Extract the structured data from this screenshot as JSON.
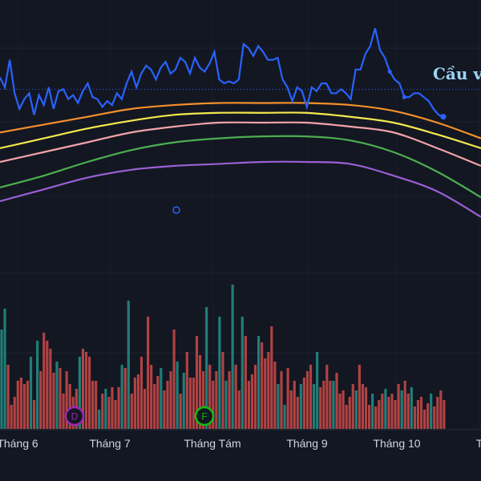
{
  "chart_data": {
    "type": "line",
    "overlay_label": "Cầu v",
    "x_ticks": [
      "Tháng 6",
      "Tháng 7",
      "Tháng Tám",
      "Tháng 9",
      "Tháng 10",
      "T"
    ],
    "price_range": [
      0,
      100
    ],
    "volume_range": [
      0,
      100
    ],
    "price_series": {
      "color": "#2962ff",
      "values": [
        83,
        78,
        92,
        75,
        67,
        72,
        75,
        64,
        74,
        69,
        78,
        67,
        76,
        77,
        72,
        74,
        70,
        76,
        80,
        73,
        72,
        68,
        71,
        69,
        75,
        72,
        80,
        86,
        78,
        85,
        89,
        87,
        82,
        88,
        91,
        85,
        87,
        93,
        91,
        85,
        93,
        88,
        86,
        90,
        96,
        82,
        80,
        81,
        80,
        82,
        100,
        98,
        94,
        99,
        96,
        92,
        92,
        93,
        82,
        78,
        71,
        78,
        76,
        68,
        78,
        76,
        80,
        80,
        75,
        75,
        77,
        75,
        72,
        87,
        87,
        95,
        99,
        108,
        97,
        93,
        86,
        82,
        80,
        73,
        73,
        75,
        75,
        73,
        71,
        67,
        64,
        63
      ]
    },
    "moving_averages": [
      {
        "color": "#f5902a",
        "values": [
          55,
          59,
          63,
          67,
          69,
          70,
          70,
          70,
          69,
          66,
          60,
          52
        ]
      },
      {
        "color": "#f5e94f",
        "values": [
          47,
          52,
          57,
          61,
          64,
          65,
          65,
          65,
          63,
          60,
          54,
          47
        ]
      },
      {
        "color": "#f4a2a9",
        "values": [
          40,
          45,
          50,
          55,
          58,
          60,
          60,
          60,
          58,
          55,
          47,
          38
        ]
      },
      {
        "color": "#4caf50",
        "values": [
          27,
          33,
          40,
          46,
          50,
          52,
          53,
          53,
          51,
          45,
          35,
          22
        ]
      },
      {
        "color": "#9c5fd5",
        "values": [
          20,
          26,
          32,
          36,
          38,
          39,
          40,
          40,
          39,
          33,
          25,
          12
        ]
      }
    ],
    "volume_series": {
      "up_color": "#26a69a",
      "down_color": "#ef5350",
      "values": [
        62,
        75,
        40,
        15,
        20,
        30,
        32,
        28,
        30,
        45,
        18,
        55,
        36,
        60,
        55,
        50,
        35,
        42,
        38,
        22,
        36,
        28,
        20,
        25,
        45,
        50,
        48,
        45,
        30,
        30,
        12,
        22,
        25,
        20,
        26,
        18,
        26,
        40,
        38,
        80,
        22,
        32,
        34,
        45,
        25,
        70,
        40,
        28,
        33,
        38,
        24,
        30,
        36,
        62,
        42,
        22,
        35,
        48,
        32,
        32,
        58,
        46,
        36,
        76,
        40,
        30,
        36,
        70,
        48,
        30,
        36,
        90,
        40,
        24,
        70,
        58,
        30,
        34,
        40,
        58,
        54,
        44,
        48,
        64,
        42,
        28,
        36,
        15,
        38,
        24,
        30,
        20,
        28,
        32,
        36,
        40,
        28,
        48,
        26,
        30,
        40,
        30,
        30,
        35,
        22,
        24,
        15,
        20,
        28,
        24,
        40,
        28,
        26,
        15,
        22,
        14,
        18,
        22,
        25,
        20,
        22,
        18,
        28,
        24,
        30,
        22,
        26,
        14,
        18,
        20,
        12,
        16,
        22,
        14,
        20,
        24,
        18
      ],
      "directions": [
        1,
        1,
        0,
        0,
        0,
        0,
        0,
        0,
        0,
        1,
        0,
        1,
        0,
        0,
        0,
        0,
        0,
        1,
        0,
        0,
        0,
        0,
        0,
        0,
        1,
        0,
        0,
        0,
        0,
        0,
        1,
        0,
        1,
        0,
        0,
        0,
        0,
        1,
        0,
        1,
        0,
        0,
        0,
        0,
        0,
        0,
        0,
        0,
        0,
        1,
        0,
        0,
        0,
        0,
        1,
        0,
        1,
        0,
        0,
        0,
        0,
        0,
        0,
        1,
        0,
        0,
        0,
        1,
        0,
        1,
        0,
        1,
        0,
        0,
        1,
        0,
        0,
        0,
        0,
        1,
        0,
        0,
        0,
        0,
        0,
        1,
        0,
        1,
        0,
        0,
        0,
        0,
        1,
        0,
        0,
        0,
        1,
        1,
        0,
        0,
        0,
        0,
        1,
        0,
        0,
        0,
        0,
        0,
        0,
        1,
        0,
        0,
        0,
        0,
        1,
        0,
        0,
        0,
        1,
        0,
        0,
        0,
        0,
        1,
        0,
        0,
        1,
        0,
        0,
        0,
        0,
        0,
        1,
        0,
        0,
        0,
        0
      ]
    },
    "markers": [
      {
        "label": "D",
        "color": "#9c27b0",
        "x_fraction": 0.155
      },
      {
        "label": "F",
        "color": "#0fbe0f",
        "x_fraction": 0.425
      }
    ],
    "dotted_level": {
      "color": "#2962ff",
      "value": 77
    }
  }
}
